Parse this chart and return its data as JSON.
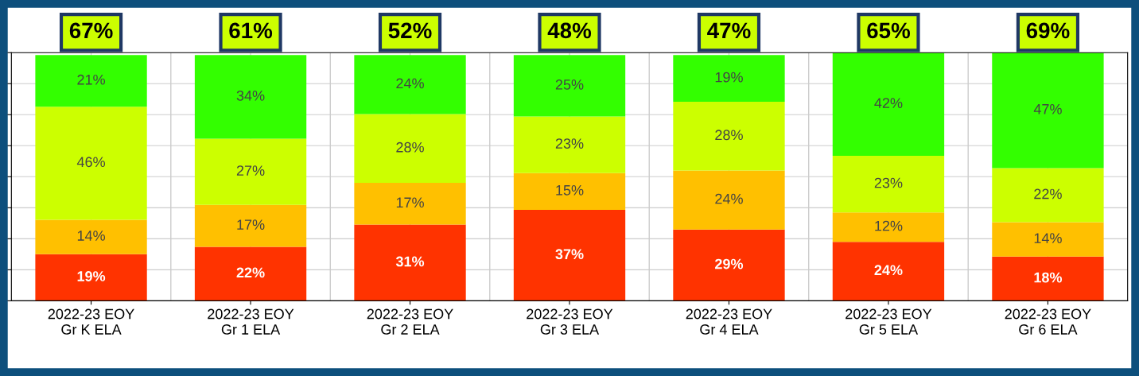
{
  "chart_data": {
    "type": "bar",
    "stacked": true,
    "categories": [
      "2022-23 EOY\nGr K ELA",
      "2022-23 EOY\nGr 1 ELA",
      "2022-23 EOY\nGr 2 ELA",
      "2022-23 EOY\nGr 3 ELA",
      "2022-23 EOY\nGr 4 ELA",
      "2022-23 EOY\nGr 5 ELA",
      "2022-23 EOY\nGr 6 ELA"
    ],
    "series": [
      {
        "color": "#ff3300",
        "values": [
          19,
          22,
          31,
          37,
          29,
          24,
          18
        ],
        "value_labels": [
          "19%",
          "22%",
          "31%",
          "37%",
          "29%",
          "24%",
          "18%"
        ]
      },
      {
        "color": "#ffc000",
        "values": [
          14,
          17,
          17,
          15,
          24,
          12,
          14
        ],
        "value_labels": [
          "14%",
          "17%",
          "17%",
          "15%",
          "24%",
          "12%",
          "14%"
        ]
      },
      {
        "color": "#ccff00",
        "values": [
          46,
          27,
          28,
          23,
          28,
          23,
          22
        ],
        "value_labels": [
          "46%",
          "27%",
          "28%",
          "23%",
          "28%",
          "23%",
          "22%"
        ]
      },
      {
        "color": "#33ff00",
        "values": [
          21,
          34,
          24,
          25,
          19,
          42,
          47
        ],
        "value_labels": [
          "21%",
          "34%",
          "24%",
          "25%",
          "19%",
          "42%",
          "47%"
        ]
      }
    ],
    "tick_labels": "x",
    "grid": true,
    "annotations": [
      "67%",
      "61%",
      "52%",
      "48%",
      "47%",
      "65%",
      "69%"
    ]
  }
}
